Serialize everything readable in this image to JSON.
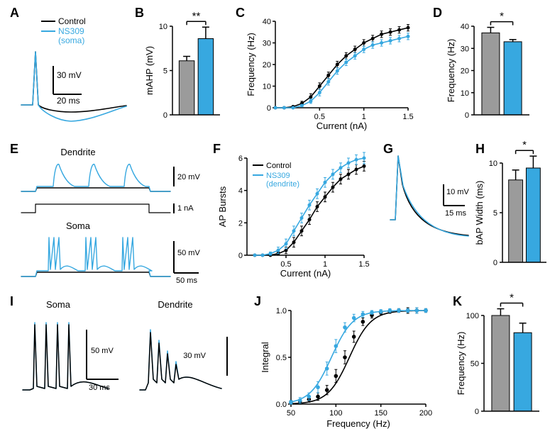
{
  "colors": {
    "control": "#000000",
    "drug": "#37a8e0",
    "bar_control_fill": "#9b9b9b",
    "bar_drug_fill": "#37a8e0",
    "axis": "#000000",
    "bg": "#ffffff"
  },
  "fonts": {
    "panel_label_size": 18,
    "axis_label_size": 13,
    "tick_size": 11,
    "legend_size": 12
  },
  "legend_A": {
    "control": "Control",
    "drug_line1": "NS309",
    "drug_line2": "(soma)"
  },
  "panels": {
    "A": {
      "scalebar": {
        "x_label": "20 ms",
        "y_label": "30 mV"
      },
      "trace": {
        "control_mAHP": -4,
        "drug_mAHP": -8
      }
    },
    "B": {
      "ylabel": "mAHP (mV)",
      "ylim": [
        0,
        10
      ],
      "yticks": [
        0,
        5,
        10
      ],
      "bars": {
        "control": 6.1,
        "drug": 8.6
      },
      "err": {
        "control": 0.5,
        "drug": 1.3
      },
      "sig": "**"
    },
    "C": {
      "xlabel": "Current (nA)",
      "ylabel": "Frequency (Hz)",
      "xlim": [
        0,
        1.5
      ],
      "ylim": [
        0,
        40
      ],
      "xticks": [
        0.5,
        1.0,
        1.5
      ],
      "yticks": [
        0,
        10,
        20,
        30,
        40
      ],
      "x": [
        0,
        0.1,
        0.2,
        0.3,
        0.4,
        0.5,
        0.6,
        0.7,
        0.8,
        0.9,
        1.0,
        1.1,
        1.2,
        1.3,
        1.4,
        1.5
      ],
      "control": [
        0,
        0,
        0.5,
        2,
        5,
        10,
        15,
        20,
        24,
        27,
        30,
        32,
        34,
        35,
        36,
        37
      ],
      "drug": [
        0,
        0,
        0,
        1,
        3,
        7,
        12,
        17,
        21,
        24,
        27,
        29,
        30,
        31,
        32,
        33
      ],
      "err_control": [
        0,
        0,
        0.5,
        1,
        1.5,
        1.5,
        1.5,
        1.5,
        1.5,
        1.5,
        1.5,
        1.5,
        1.5,
        1.5,
        1.5,
        1.5
      ],
      "err_drug": [
        0,
        0,
        0,
        0.5,
        1,
        1.5,
        1.5,
        1.5,
        1.5,
        1.5,
        1.5,
        1.5,
        1.5,
        1.5,
        1.5,
        1.5
      ]
    },
    "D": {
      "ylabel": "Frequency (Hz)",
      "ylim": [
        0,
        40
      ],
      "yticks": [
        0,
        10,
        20,
        30,
        40
      ],
      "bars": {
        "control": 37,
        "drug": 33
      },
      "err": {
        "control": 2.5,
        "drug": 1
      },
      "sig": "*"
    },
    "E": {
      "top_label": "Dendrite",
      "bottom_label": "Soma",
      "scalebars": {
        "top": {
          "y": "20 mV"
        },
        "mid": {
          "y": "1 nA"
        },
        "bottom": {
          "x": "50 ms",
          "y": "50 mV"
        }
      }
    },
    "F": {
      "xlabel": "Current (nA)",
      "ylabel": "AP Bursts",
      "xlim": [
        0,
        1.5
      ],
      "ylim": [
        0,
        6
      ],
      "xticks": [
        0.5,
        1.0,
        1.5
      ],
      "yticks": [
        0,
        2,
        4,
        6
      ],
      "x": [
        0.1,
        0.2,
        0.3,
        0.4,
        0.5,
        0.6,
        0.7,
        0.8,
        0.9,
        1.0,
        1.1,
        1.2,
        1.3,
        1.4,
        1.5
      ],
      "control": [
        0,
        0,
        0,
        0.1,
        0.3,
        0.8,
        1.5,
        2.2,
        3.0,
        3.6,
        4.2,
        4.7,
        5.0,
        5.3,
        5.5
      ],
      "drug": [
        0,
        0,
        0.1,
        0.3,
        0.7,
        1.5,
        2.3,
        3.1,
        3.8,
        4.5,
        5.0,
        5.4,
        5.7,
        5.9,
        6.0
      ],
      "err_control": [
        0,
        0,
        0,
        0.1,
        0.2,
        0.3,
        0.3,
        0.3,
        0.3,
        0.3,
        0.3,
        0.3,
        0.3,
        0.3,
        0.3
      ],
      "err_drug": [
        0,
        0,
        0.1,
        0.2,
        0.3,
        0.3,
        0.3,
        0.3,
        0.3,
        0.3,
        0.3,
        0.3,
        0.3,
        0.3,
        0.35
      ],
      "legend": {
        "control": "Control",
        "drug_line1": "NS309",
        "drug_line2": "(dendrite)"
      }
    },
    "G": {
      "scalebar": {
        "x": "15 ms",
        "y": "10 mV"
      }
    },
    "H": {
      "ylabel": "bAP Width (ms)",
      "ylim": [
        0,
        10
      ],
      "yticks": [
        0,
        5,
        10
      ],
      "bars": {
        "control": 8.3,
        "drug": 9.5
      },
      "err": {
        "control": 1.0,
        "drug": 1.2
      },
      "sig": "*"
    },
    "I": {
      "left_label": "Soma",
      "right_label": "Dendrite",
      "scalebars": {
        "left": {
          "x": "30 ms",
          "y": "50 mV"
        },
        "right": {
          "y": "30 mV"
        }
      }
    },
    "J": {
      "xlabel": "Frequency (Hz)",
      "ylabel": "Integral",
      "xlim": [
        50,
        200
      ],
      "ylim": [
        0,
        1.0
      ],
      "xticks": [
        50,
        100,
        150,
        200
      ],
      "yticks": [
        0,
        0.5,
        1.0
      ],
      "x": [
        50,
        60,
        70,
        80,
        90,
        100,
        110,
        120,
        130,
        140,
        150,
        160,
        170,
        180,
        190,
        200
      ],
      "control": [
        0.02,
        0.03,
        0.05,
        0.08,
        0.15,
        0.3,
        0.5,
        0.72,
        0.88,
        0.95,
        0.98,
        0.99,
        1.0,
        1.0,
        1.0,
        1.0
      ],
      "drug": [
        0.02,
        0.04,
        0.08,
        0.18,
        0.38,
        0.62,
        0.82,
        0.92,
        0.96,
        0.98,
        0.99,
        1.0,
        1.0,
        1.0,
        1.0,
        1.0
      ],
      "err_control": [
        0.02,
        0.02,
        0.03,
        0.04,
        0.05,
        0.07,
        0.07,
        0.06,
        0.04,
        0.03,
        0.02,
        0.02,
        0.02,
        0.03,
        0.03,
        0.02
      ],
      "err_drug": [
        0.02,
        0.03,
        0.04,
        0.06,
        0.07,
        0.07,
        0.05,
        0.04,
        0.03,
        0.02,
        0.02,
        0.02,
        0.02,
        0.02,
        0.03,
        0.02
      ]
    },
    "K": {
      "ylabel": "Frequency (Hz)",
      "ylim": [
        0,
        100
      ],
      "yticks": [
        0,
        50,
        100
      ],
      "bars": {
        "control": 100,
        "drug": 82
      },
      "err": {
        "control": 7,
        "drug": 10
      },
      "sig": "*"
    }
  }
}
